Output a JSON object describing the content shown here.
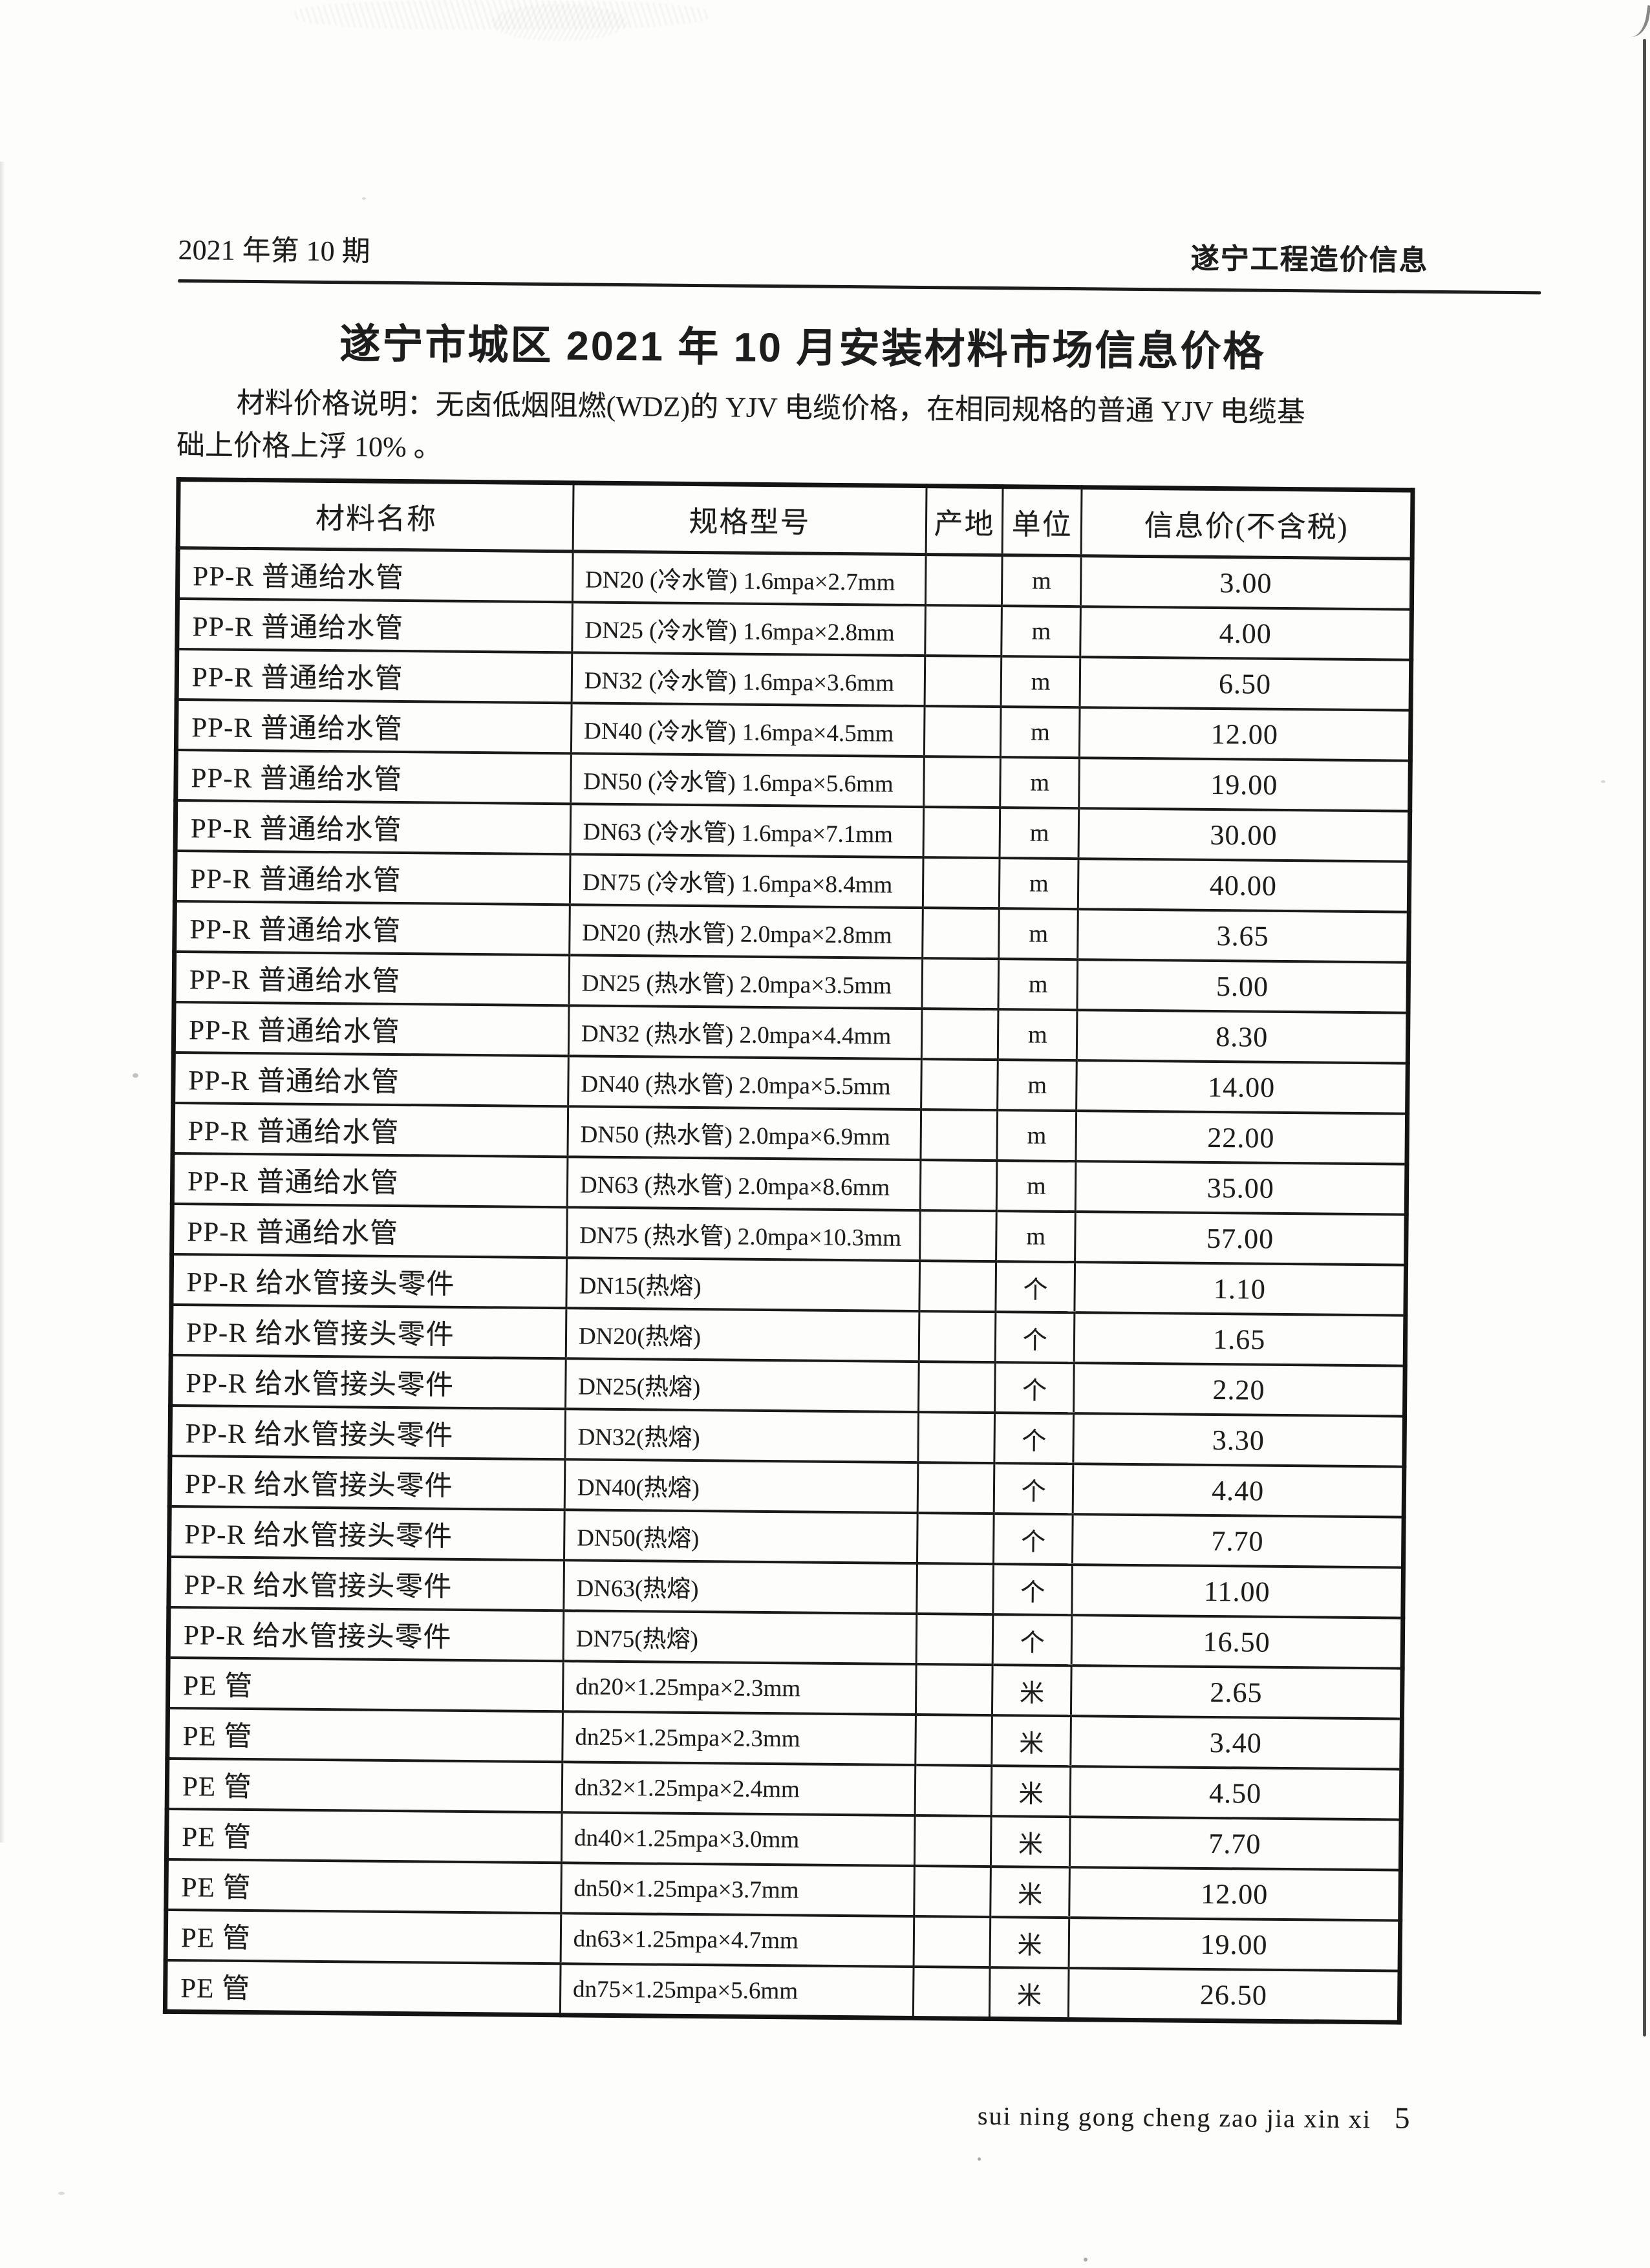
{
  "page": {
    "header_left": "2021 年第 10 期",
    "header_right": "遂宁工程造价信息",
    "title": "遂宁市城区 2021 年 10 月安装材料市场信息价格",
    "note_line1": "材料价格说明：无卤低烟阻燃(WDZ)的 YJV 电缆价格，在相同规格的普通 YJV 电缆基",
    "note_line2": "础上价格上浮 10% 。",
    "footer_pinyin": "sui ning gong cheng zao jia xin xi",
    "page_number": "5",
    "ink_color": "#1d1d1d",
    "paper_color": "#fdfdfb"
  },
  "table": {
    "columns": [
      "材料名称",
      "规格型号",
      "产地",
      "单位",
      "信息价(不含税)"
    ],
    "rows": [
      {
        "name": "PP-R 普通给水管",
        "spec": "DN20 (冷水管) 1.6mpa×2.7mm",
        "origin": "",
        "unit": "m",
        "price": "3.00"
      },
      {
        "name": "PP-R 普通给水管",
        "spec": "DN25 (冷水管) 1.6mpa×2.8mm",
        "origin": "",
        "unit": "m",
        "price": "4.00"
      },
      {
        "name": "PP-R 普通给水管",
        "spec": "DN32 (冷水管) 1.6mpa×3.6mm",
        "origin": "",
        "unit": "m",
        "price": "6.50"
      },
      {
        "name": "PP-R 普通给水管",
        "spec": "DN40 (冷水管) 1.6mpa×4.5mm",
        "origin": "",
        "unit": "m",
        "price": "12.00"
      },
      {
        "name": "PP-R 普通给水管",
        "spec": "DN50 (冷水管) 1.6mpa×5.6mm",
        "origin": "",
        "unit": "m",
        "price": "19.00"
      },
      {
        "name": "PP-R 普通给水管",
        "spec": "DN63 (冷水管) 1.6mpa×7.1mm",
        "origin": "",
        "unit": "m",
        "price": "30.00"
      },
      {
        "name": "PP-R 普通给水管",
        "spec": "DN75 (冷水管) 1.6mpa×8.4mm",
        "origin": "",
        "unit": "m",
        "price": "40.00"
      },
      {
        "name": "PP-R 普通给水管",
        "spec": "DN20 (热水管) 2.0mpa×2.8mm",
        "origin": "",
        "unit": "m",
        "price": "3.65"
      },
      {
        "name": "PP-R 普通给水管",
        "spec": "DN25 (热水管) 2.0mpa×3.5mm",
        "origin": "",
        "unit": "m",
        "price": "5.00"
      },
      {
        "name": "PP-R 普通给水管",
        "spec": "DN32 (热水管) 2.0mpa×4.4mm",
        "origin": "",
        "unit": "m",
        "price": "8.30"
      },
      {
        "name": "PP-R 普通给水管",
        "spec": "DN40 (热水管) 2.0mpa×5.5mm",
        "origin": "",
        "unit": "m",
        "price": "14.00"
      },
      {
        "name": "PP-R 普通给水管",
        "spec": "DN50 (热水管) 2.0mpa×6.9mm",
        "origin": "",
        "unit": "m",
        "price": "22.00"
      },
      {
        "name": "PP-R 普通给水管",
        "spec": "DN63 (热水管) 2.0mpa×8.6mm",
        "origin": "",
        "unit": "m",
        "price": "35.00"
      },
      {
        "name": "PP-R 普通给水管",
        "spec": "DN75 (热水管) 2.0mpa×10.3mm",
        "origin": "",
        "unit": "m",
        "price": "57.00"
      },
      {
        "name": "PP-R 给水管接头零件",
        "spec": "DN15(热熔)",
        "origin": "",
        "unit": "个",
        "price": "1.10"
      },
      {
        "name": "PP-R 给水管接头零件",
        "spec": "DN20(热熔)",
        "origin": "",
        "unit": "个",
        "price": "1.65"
      },
      {
        "name": "PP-R 给水管接头零件",
        "spec": "DN25(热熔)",
        "origin": "",
        "unit": "个",
        "price": "2.20"
      },
      {
        "name": "PP-R 给水管接头零件",
        "spec": "DN32(热熔)",
        "origin": "",
        "unit": "个",
        "price": "3.30"
      },
      {
        "name": "PP-R 给水管接头零件",
        "spec": "DN40(热熔)",
        "origin": "",
        "unit": "个",
        "price": "4.40"
      },
      {
        "name": "PP-R 给水管接头零件",
        "spec": "DN50(热熔)",
        "origin": "",
        "unit": "个",
        "price": "7.70"
      },
      {
        "name": "PP-R 给水管接头零件",
        "spec": "DN63(热熔)",
        "origin": "",
        "unit": "个",
        "price": "11.00"
      },
      {
        "name": "PP-R 给水管接头零件",
        "spec": "DN75(热熔)",
        "origin": "",
        "unit": "个",
        "price": "16.50"
      },
      {
        "name": "PE 管",
        "spec": "dn20×1.25mpa×2.3mm",
        "origin": "",
        "unit": "米",
        "price": "2.65"
      },
      {
        "name": "PE 管",
        "spec": "dn25×1.25mpa×2.3mm",
        "origin": "",
        "unit": "米",
        "price": "3.40"
      },
      {
        "name": "PE 管",
        "spec": "dn32×1.25mpa×2.4mm",
        "origin": "",
        "unit": "米",
        "price": "4.50"
      },
      {
        "name": "PE 管",
        "spec": "dn40×1.25mpa×3.0mm",
        "origin": "",
        "unit": "米",
        "price": "7.70"
      },
      {
        "name": "PE 管",
        "spec": "dn50×1.25mpa×3.7mm",
        "origin": "",
        "unit": "米",
        "price": "12.00"
      },
      {
        "name": "PE 管",
        "spec": "dn63×1.25mpa×4.7mm",
        "origin": "",
        "unit": "米",
        "price": "19.00"
      },
      {
        "name": "PE 管",
        "spec": "dn75×1.25mpa×5.6mm",
        "origin": "",
        "unit": "米",
        "price": "26.50"
      }
    ]
  }
}
